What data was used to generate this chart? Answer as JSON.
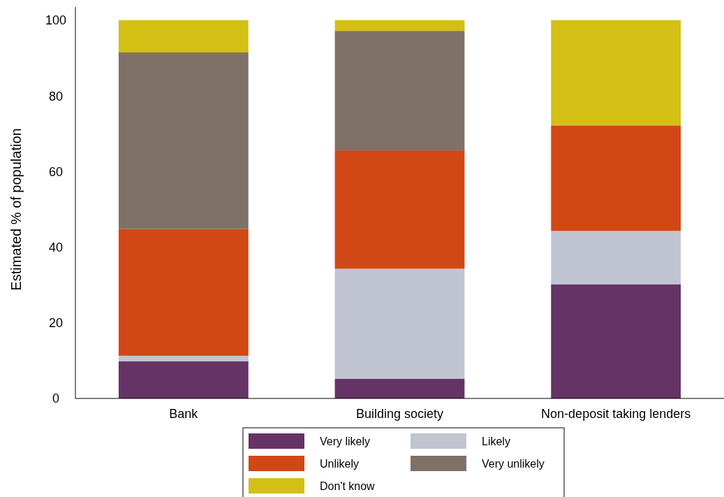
{
  "chart_data": {
    "type": "bar",
    "stacked": true,
    "ylabel": "Estimated % of population",
    "categories": [
      "Bank",
      "Building society",
      "Non-deposit taking lenders"
    ],
    "series": [
      {
        "name": "Very likely",
        "color": "#663366",
        "values": [
          9.8,
          5.2,
          30.2
        ]
      },
      {
        "name": "Likely",
        "color": "#c0c5d1",
        "values": [
          1.5,
          29.1,
          14.1
        ]
      },
      {
        "name": "Unlikely",
        "color": "#d24716",
        "values": [
          33.5,
          31.3,
          27.9
        ]
      },
      {
        "name": "Very unlikely",
        "color": "#807166",
        "values": [
          46.7,
          31.6,
          0
        ]
      },
      {
        "name": "Don't know",
        "color": "#d4bf14",
        "values": [
          8.5,
          2.8,
          27.8
        ]
      }
    ],
    "ylim": [
      0,
      100
    ],
    "yticks": [
      0,
      20,
      40,
      60,
      80,
      100
    ],
    "grid": false,
    "legend": "bottom"
  }
}
